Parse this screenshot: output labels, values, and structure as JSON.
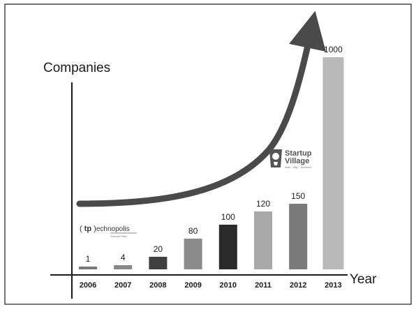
{
  "chart_data": {
    "type": "bar",
    "ylabel": "Companies",
    "xlabel": "Year",
    "categories": [
      "2006",
      "2007",
      "2008",
      "2009",
      "2010",
      "2011",
      "2012",
      "2013"
    ],
    "values": [
      1,
      4,
      20,
      80,
      100,
      120,
      150,
      1000
    ],
    "data_labels": [
      "1",
      "4",
      "20",
      "80",
      "100",
      "120",
      "150",
      "1000"
    ],
    "bar_colors": [
      "#777777",
      "#888888",
      "#404040",
      "#8a8a8a",
      "#2a2a2a",
      "#a8a8a8",
      "#7a7a7a",
      "#b9b9b9"
    ],
    "axis_scale": "non-linear (bar heights not proportional to values)",
    "grid": false,
    "annotations": [
      "upward curved growth arrow",
      "Startup Village logo",
      "Technopolis logo"
    ]
  },
  "logos": {
    "startup_village": {
      "line1": "Startup",
      "line2": "Village",
      "tagline": "build · ship · succeed"
    },
    "technopolis": {
      "prefix": "( ",
      "mark": "tp",
      "suffix": " )",
      "text": "echnopolis",
      "tagline": "Science Park"
    }
  }
}
